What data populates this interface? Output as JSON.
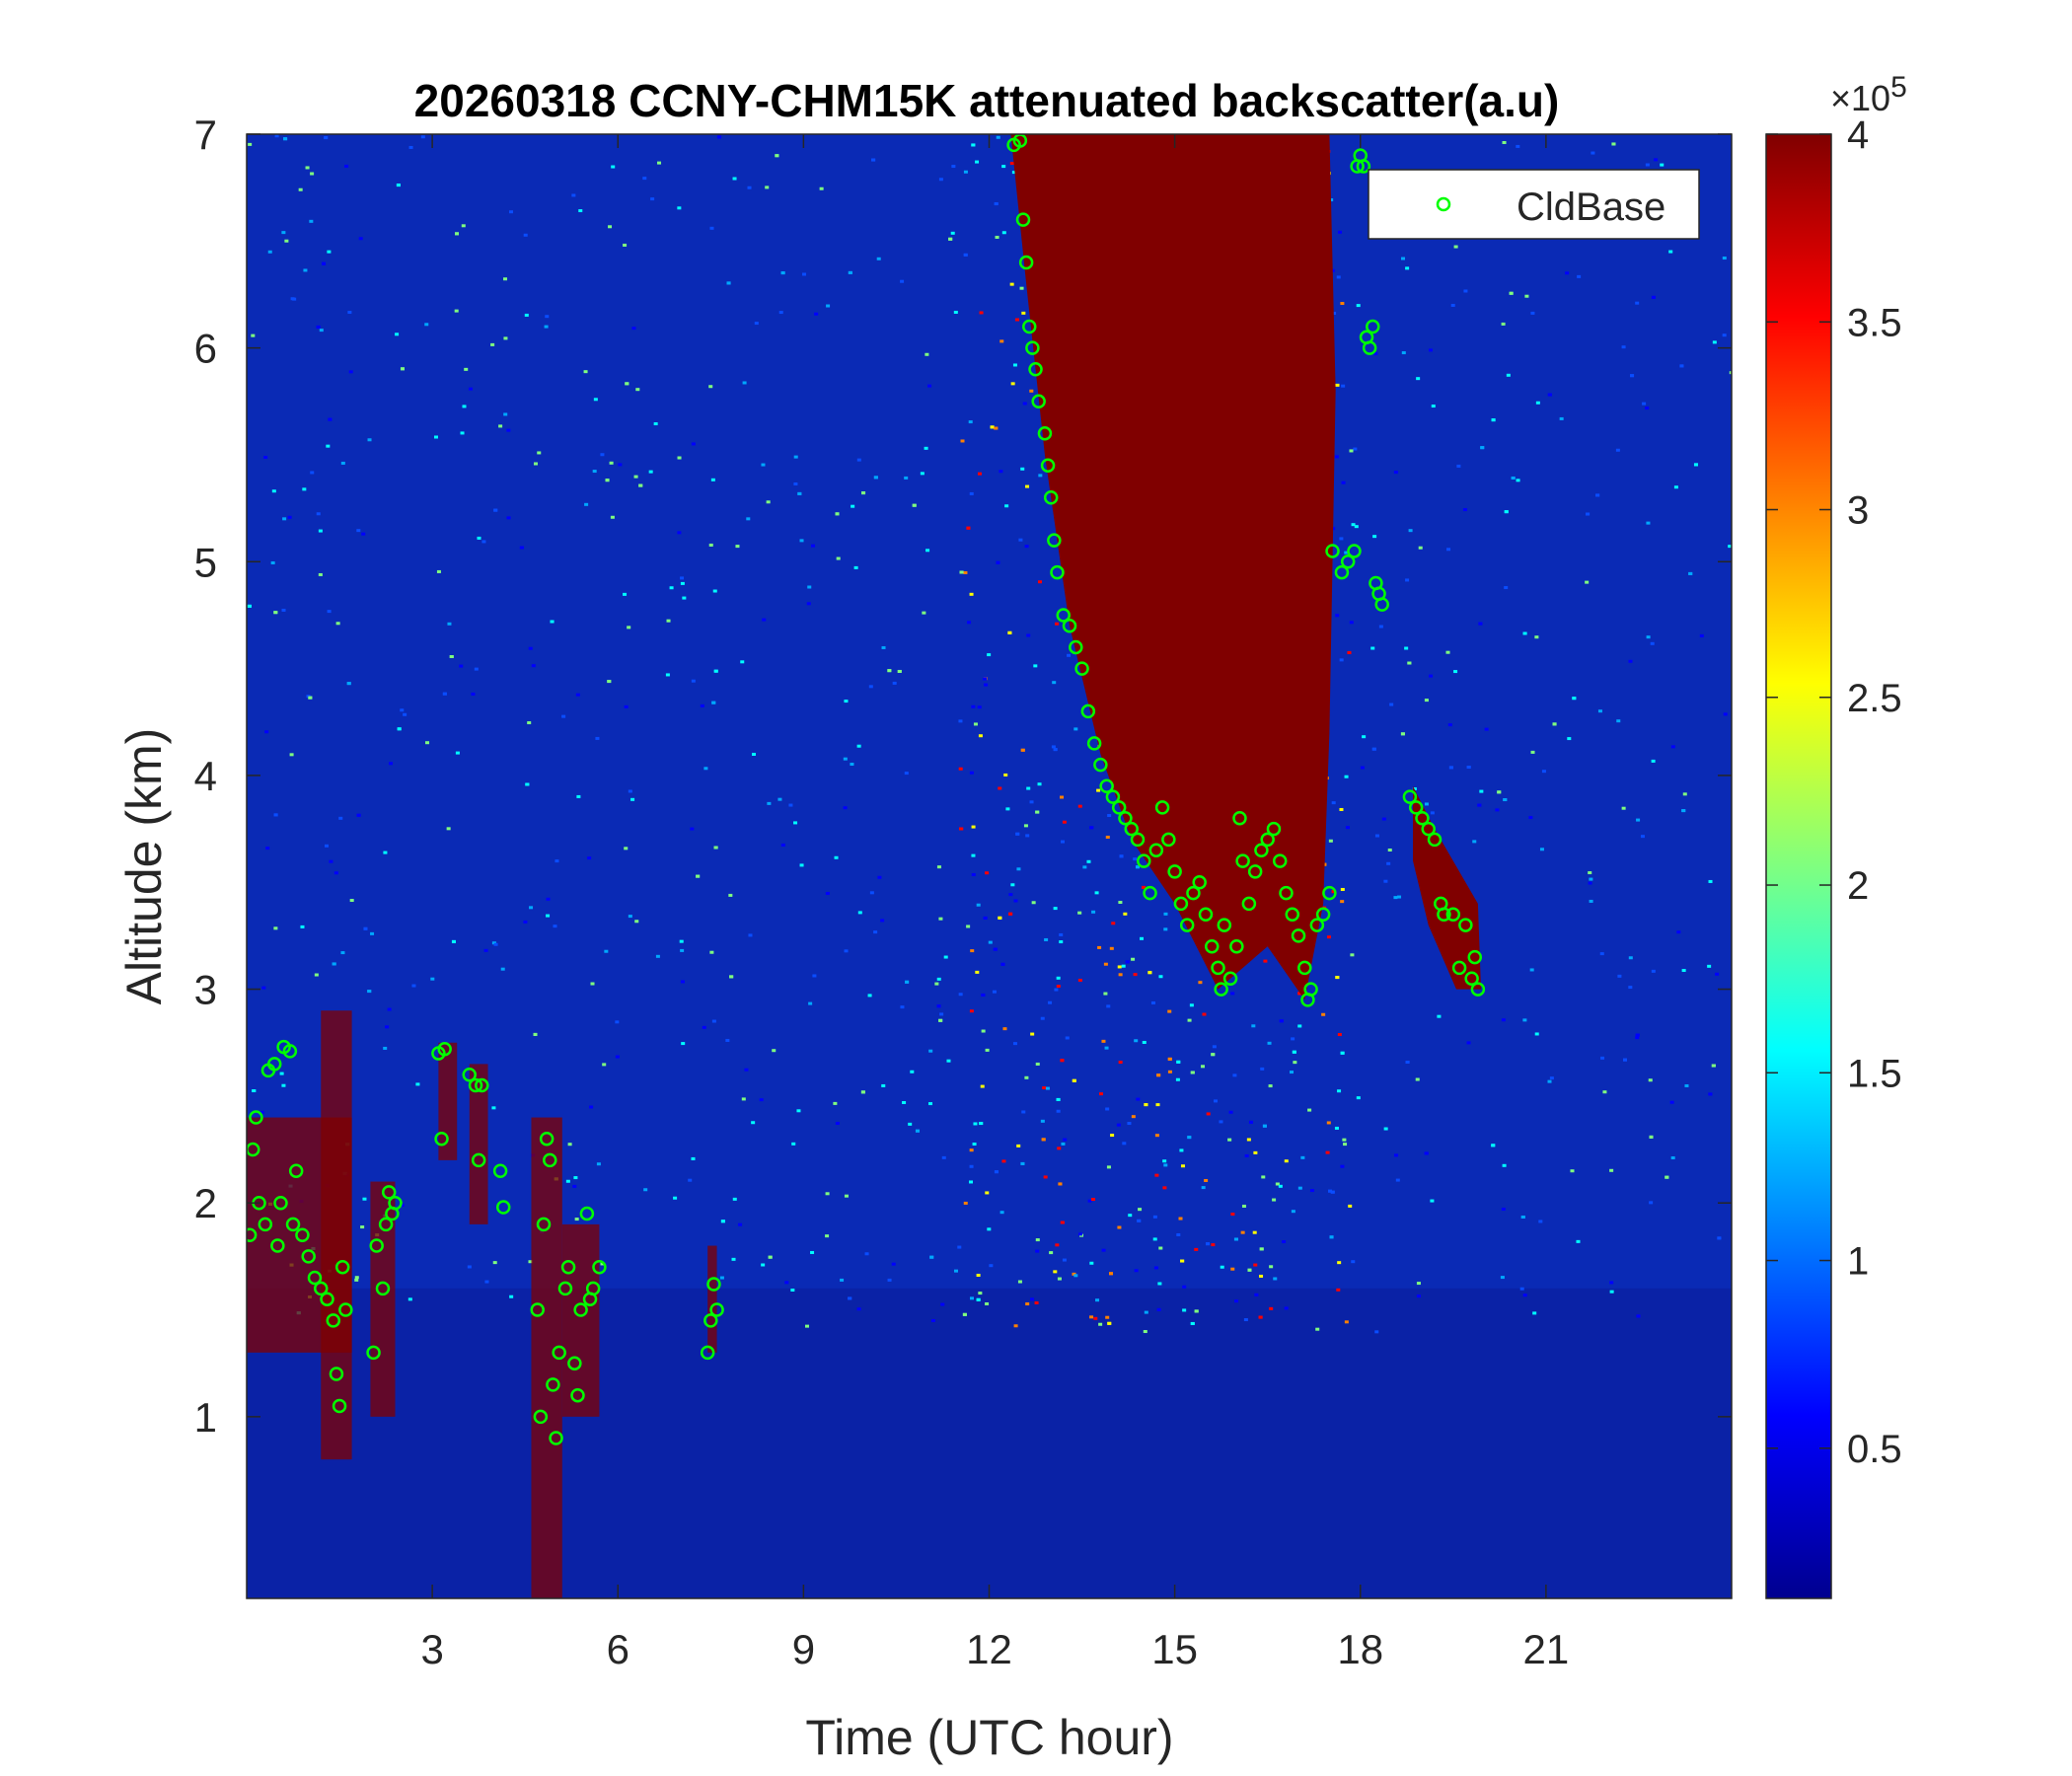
{
  "chart_data": {
    "type": "heatmap",
    "title": "20260318 CCNY-CHM15K attenuated backscatter(a.u)",
    "xlabel": "Time (UTC hour)",
    "ylabel": "Altitude (km)",
    "xlim": [
      0,
      24
    ],
    "ylim": [
      0.15,
      7
    ],
    "xticks": [
      3,
      6,
      9,
      12,
      15,
      18,
      21
    ],
    "yticks": [
      1,
      2,
      3,
      4,
      5,
      6,
      7
    ],
    "colorbar": {
      "clim": [
        10000,
        400000
      ],
      "ticks": [
        0.5,
        1,
        1.5,
        2,
        2.5,
        3,
        3.5,
        4
      ],
      "tick_labels": [
        "0.5",
        "1",
        "1.5",
        "2",
        "2.5",
        "3",
        "3.5",
        "4"
      ],
      "multiplier_prefix": "×10",
      "multiplier_exponent": "5",
      "colormap": "jet"
    },
    "legend": {
      "position": "top-right",
      "entries": [
        "CldBase"
      ]
    },
    "scatter_color": "#00ff00",
    "background_colors": {
      "low": "#0a2ab5",
      "high": "#800000"
    },
    "cloud_base_series": {
      "name": "CldBase",
      "points": [
        [
          0.05,
          1.85
        ],
        [
          0.1,
          2.25
        ],
        [
          0.15,
          2.4
        ],
        [
          0.2,
          2.0
        ],
        [
          0.3,
          1.9
        ],
        [
          0.35,
          2.62
        ],
        [
          0.45,
          2.65
        ],
        [
          0.5,
          1.8
        ],
        [
          0.55,
          2.0
        ],
        [
          0.6,
          2.73
        ],
        [
          0.7,
          2.71
        ],
        [
          0.75,
          1.9
        ],
        [
          0.8,
          2.15
        ],
        [
          0.9,
          1.85
        ],
        [
          1.0,
          1.75
        ],
        [
          1.1,
          1.65
        ],
        [
          1.2,
          1.6
        ],
        [
          1.3,
          1.55
        ],
        [
          1.4,
          1.45
        ],
        [
          1.45,
          1.2
        ],
        [
          1.5,
          1.05
        ],
        [
          1.55,
          1.7
        ],
        [
          1.6,
          1.5
        ],
        [
          2.05,
          1.3
        ],
        [
          2.1,
          1.8
        ],
        [
          2.2,
          1.6
        ],
        [
          2.25,
          1.9
        ],
        [
          2.3,
          2.05
        ],
        [
          2.35,
          1.95
        ],
        [
          2.4,
          2.0
        ],
        [
          3.1,
          2.7
        ],
        [
          3.15,
          2.3
        ],
        [
          3.2,
          2.72
        ],
        [
          3.6,
          2.6
        ],
        [
          3.7,
          2.55
        ],
        [
          3.75,
          2.2
        ],
        [
          3.8,
          2.55
        ],
        [
          4.1,
          2.15
        ],
        [
          4.15,
          1.98
        ],
        [
          4.7,
          1.5
        ],
        [
          4.75,
          1.0
        ],
        [
          4.8,
          1.9
        ],
        [
          4.85,
          2.3
        ],
        [
          4.9,
          2.2
        ],
        [
          4.95,
          1.15
        ],
        [
          5.0,
          0.9
        ],
        [
          5.05,
          1.3
        ],
        [
          5.15,
          1.6
        ],
        [
          5.2,
          1.7
        ],
        [
          5.3,
          1.25
        ],
        [
          5.35,
          1.1
        ],
        [
          5.4,
          1.5
        ],
        [
          5.5,
          1.95
        ],
        [
          5.55,
          1.55
        ],
        [
          5.6,
          1.6
        ],
        [
          5.7,
          1.7
        ],
        [
          7.45,
          1.3
        ],
        [
          7.5,
          1.45
        ],
        [
          7.55,
          1.62
        ],
        [
          7.6,
          1.5
        ],
        [
          12.4,
          6.95
        ],
        [
          12.5,
          6.97
        ],
        [
          12.55,
          6.6
        ],
        [
          12.6,
          6.4
        ],
        [
          12.65,
          6.1
        ],
        [
          12.7,
          6.0
        ],
        [
          12.75,
          5.9
        ],
        [
          12.8,
          5.75
        ],
        [
          12.9,
          5.6
        ],
        [
          12.95,
          5.45
        ],
        [
          13.0,
          5.3
        ],
        [
          13.05,
          5.1
        ],
        [
          13.1,
          4.95
        ],
        [
          13.2,
          4.75
        ],
        [
          13.3,
          4.7
        ],
        [
          13.4,
          4.6
        ],
        [
          13.5,
          4.5
        ],
        [
          13.6,
          4.3
        ],
        [
          13.7,
          4.15
        ],
        [
          13.8,
          4.05
        ],
        [
          13.9,
          3.95
        ],
        [
          14.0,
          3.9
        ],
        [
          14.1,
          3.85
        ],
        [
          14.2,
          3.8
        ],
        [
          14.3,
          3.75
        ],
        [
          14.4,
          3.7
        ],
        [
          14.5,
          3.6
        ],
        [
          14.6,
          3.45
        ],
        [
          14.7,
          3.65
        ],
        [
          14.8,
          3.85
        ],
        [
          14.9,
          3.7
        ],
        [
          15.0,
          3.55
        ],
        [
          15.1,
          3.4
        ],
        [
          15.2,
          3.3
        ],
        [
          15.3,
          3.45
        ],
        [
          15.4,
          3.5
        ],
        [
          15.5,
          3.35
        ],
        [
          15.6,
          3.2
        ],
        [
          15.7,
          3.1
        ],
        [
          15.75,
          3.0
        ],
        [
          15.8,
          3.3
        ],
        [
          15.9,
          3.05
        ],
        [
          16.0,
          3.2
        ],
        [
          16.05,
          3.8
        ],
        [
          16.1,
          3.6
        ],
        [
          16.2,
          3.4
        ],
        [
          16.3,
          3.55
        ],
        [
          16.4,
          3.65
        ],
        [
          16.5,
          3.7
        ],
        [
          16.6,
          3.75
        ],
        [
          16.7,
          3.6
        ],
        [
          16.8,
          3.45
        ],
        [
          16.9,
          3.35
        ],
        [
          17.0,
          3.25
        ],
        [
          17.1,
          3.1
        ],
        [
          17.15,
          2.95
        ],
        [
          17.2,
          3.0
        ],
        [
          17.3,
          3.3
        ],
        [
          17.4,
          3.35
        ],
        [
          17.5,
          3.45
        ],
        [
          17.55,
          5.05
        ],
        [
          17.7,
          4.95
        ],
        [
          17.8,
          5.0
        ],
        [
          17.9,
          5.05
        ],
        [
          17.95,
          6.85
        ],
        [
          18.0,
          6.9
        ],
        [
          18.05,
          6.85
        ],
        [
          18.1,
          6.05
        ],
        [
          18.15,
          6.0
        ],
        [
          18.2,
          6.1
        ],
        [
          18.25,
          4.9
        ],
        [
          18.3,
          4.85
        ],
        [
          18.35,
          4.8
        ],
        [
          18.8,
          3.9
        ],
        [
          18.9,
          3.85
        ],
        [
          19.0,
          3.8
        ],
        [
          19.1,
          3.75
        ],
        [
          19.2,
          3.7
        ],
        [
          19.3,
          3.4
        ],
        [
          19.35,
          3.35
        ],
        [
          19.5,
          3.35
        ],
        [
          19.6,
          3.1
        ],
        [
          19.7,
          3.3
        ],
        [
          19.8,
          3.05
        ],
        [
          19.85,
          3.15
        ],
        [
          19.9,
          3.0
        ]
      ]
    }
  }
}
